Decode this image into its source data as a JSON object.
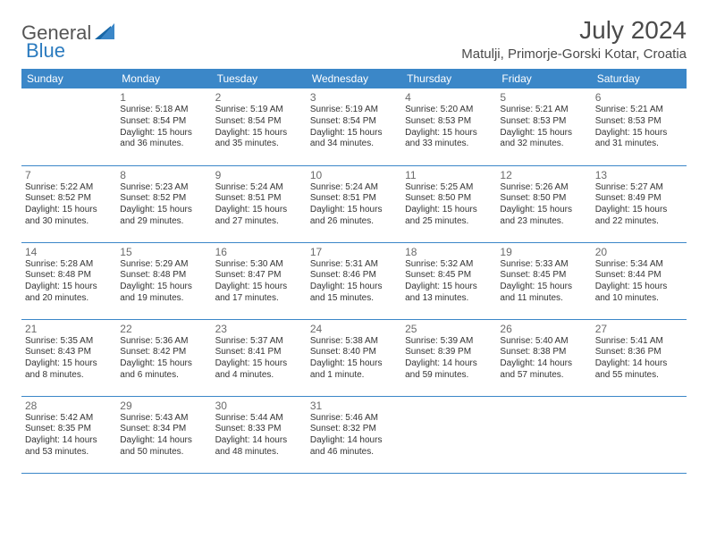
{
  "logo": {
    "part1": "General",
    "part2": "Blue"
  },
  "title": "July 2024",
  "location": "Matulji, Primorje-Gorski Kotar, Croatia",
  "colors": {
    "header_bg": "#3b87c8",
    "header_text": "#ffffff",
    "border": "#3b87c8",
    "text": "#333333",
    "daynum": "#6a6a6a",
    "logo_gray": "#555555",
    "logo_blue": "#2b7bbf"
  },
  "weekdays": [
    "Sunday",
    "Monday",
    "Tuesday",
    "Wednesday",
    "Thursday",
    "Friday",
    "Saturday"
  ],
  "weeks": [
    [
      null,
      {
        "n": "1",
        "sr": "Sunrise: 5:18 AM",
        "ss": "Sunset: 8:54 PM",
        "d1": "Daylight: 15 hours",
        "d2": "and 36 minutes."
      },
      {
        "n": "2",
        "sr": "Sunrise: 5:19 AM",
        "ss": "Sunset: 8:54 PM",
        "d1": "Daylight: 15 hours",
        "d2": "and 35 minutes."
      },
      {
        "n": "3",
        "sr": "Sunrise: 5:19 AM",
        "ss": "Sunset: 8:54 PM",
        "d1": "Daylight: 15 hours",
        "d2": "and 34 minutes."
      },
      {
        "n": "4",
        "sr": "Sunrise: 5:20 AM",
        "ss": "Sunset: 8:53 PM",
        "d1": "Daylight: 15 hours",
        "d2": "and 33 minutes."
      },
      {
        "n": "5",
        "sr": "Sunrise: 5:21 AM",
        "ss": "Sunset: 8:53 PM",
        "d1": "Daylight: 15 hours",
        "d2": "and 32 minutes."
      },
      {
        "n": "6",
        "sr": "Sunrise: 5:21 AM",
        "ss": "Sunset: 8:53 PM",
        "d1": "Daylight: 15 hours",
        "d2": "and 31 minutes."
      }
    ],
    [
      {
        "n": "7",
        "sr": "Sunrise: 5:22 AM",
        "ss": "Sunset: 8:52 PM",
        "d1": "Daylight: 15 hours",
        "d2": "and 30 minutes."
      },
      {
        "n": "8",
        "sr": "Sunrise: 5:23 AM",
        "ss": "Sunset: 8:52 PM",
        "d1": "Daylight: 15 hours",
        "d2": "and 29 minutes."
      },
      {
        "n": "9",
        "sr": "Sunrise: 5:24 AM",
        "ss": "Sunset: 8:51 PM",
        "d1": "Daylight: 15 hours",
        "d2": "and 27 minutes."
      },
      {
        "n": "10",
        "sr": "Sunrise: 5:24 AM",
        "ss": "Sunset: 8:51 PM",
        "d1": "Daylight: 15 hours",
        "d2": "and 26 minutes."
      },
      {
        "n": "11",
        "sr": "Sunrise: 5:25 AM",
        "ss": "Sunset: 8:50 PM",
        "d1": "Daylight: 15 hours",
        "d2": "and 25 minutes."
      },
      {
        "n": "12",
        "sr": "Sunrise: 5:26 AM",
        "ss": "Sunset: 8:50 PM",
        "d1": "Daylight: 15 hours",
        "d2": "and 23 minutes."
      },
      {
        "n": "13",
        "sr": "Sunrise: 5:27 AM",
        "ss": "Sunset: 8:49 PM",
        "d1": "Daylight: 15 hours",
        "d2": "and 22 minutes."
      }
    ],
    [
      {
        "n": "14",
        "sr": "Sunrise: 5:28 AM",
        "ss": "Sunset: 8:48 PM",
        "d1": "Daylight: 15 hours",
        "d2": "and 20 minutes."
      },
      {
        "n": "15",
        "sr": "Sunrise: 5:29 AM",
        "ss": "Sunset: 8:48 PM",
        "d1": "Daylight: 15 hours",
        "d2": "and 19 minutes."
      },
      {
        "n": "16",
        "sr": "Sunrise: 5:30 AM",
        "ss": "Sunset: 8:47 PM",
        "d1": "Daylight: 15 hours",
        "d2": "and 17 minutes."
      },
      {
        "n": "17",
        "sr": "Sunrise: 5:31 AM",
        "ss": "Sunset: 8:46 PM",
        "d1": "Daylight: 15 hours",
        "d2": "and 15 minutes."
      },
      {
        "n": "18",
        "sr": "Sunrise: 5:32 AM",
        "ss": "Sunset: 8:45 PM",
        "d1": "Daylight: 15 hours",
        "d2": "and 13 minutes."
      },
      {
        "n": "19",
        "sr": "Sunrise: 5:33 AM",
        "ss": "Sunset: 8:45 PM",
        "d1": "Daylight: 15 hours",
        "d2": "and 11 minutes."
      },
      {
        "n": "20",
        "sr": "Sunrise: 5:34 AM",
        "ss": "Sunset: 8:44 PM",
        "d1": "Daylight: 15 hours",
        "d2": "and 10 minutes."
      }
    ],
    [
      {
        "n": "21",
        "sr": "Sunrise: 5:35 AM",
        "ss": "Sunset: 8:43 PM",
        "d1": "Daylight: 15 hours",
        "d2": "and 8 minutes."
      },
      {
        "n": "22",
        "sr": "Sunrise: 5:36 AM",
        "ss": "Sunset: 8:42 PM",
        "d1": "Daylight: 15 hours",
        "d2": "and 6 minutes."
      },
      {
        "n": "23",
        "sr": "Sunrise: 5:37 AM",
        "ss": "Sunset: 8:41 PM",
        "d1": "Daylight: 15 hours",
        "d2": "and 4 minutes."
      },
      {
        "n": "24",
        "sr": "Sunrise: 5:38 AM",
        "ss": "Sunset: 8:40 PM",
        "d1": "Daylight: 15 hours",
        "d2": "and 1 minute."
      },
      {
        "n": "25",
        "sr": "Sunrise: 5:39 AM",
        "ss": "Sunset: 8:39 PM",
        "d1": "Daylight: 14 hours",
        "d2": "and 59 minutes."
      },
      {
        "n": "26",
        "sr": "Sunrise: 5:40 AM",
        "ss": "Sunset: 8:38 PM",
        "d1": "Daylight: 14 hours",
        "d2": "and 57 minutes."
      },
      {
        "n": "27",
        "sr": "Sunrise: 5:41 AM",
        "ss": "Sunset: 8:36 PM",
        "d1": "Daylight: 14 hours",
        "d2": "and 55 minutes."
      }
    ],
    [
      {
        "n": "28",
        "sr": "Sunrise: 5:42 AM",
        "ss": "Sunset: 8:35 PM",
        "d1": "Daylight: 14 hours",
        "d2": "and 53 minutes."
      },
      {
        "n": "29",
        "sr": "Sunrise: 5:43 AM",
        "ss": "Sunset: 8:34 PM",
        "d1": "Daylight: 14 hours",
        "d2": "and 50 minutes."
      },
      {
        "n": "30",
        "sr": "Sunrise: 5:44 AM",
        "ss": "Sunset: 8:33 PM",
        "d1": "Daylight: 14 hours",
        "d2": "and 48 minutes."
      },
      {
        "n": "31",
        "sr": "Sunrise: 5:46 AM",
        "ss": "Sunset: 8:32 PM",
        "d1": "Daylight: 14 hours",
        "d2": "and 46 minutes."
      },
      null,
      null,
      null
    ]
  ]
}
